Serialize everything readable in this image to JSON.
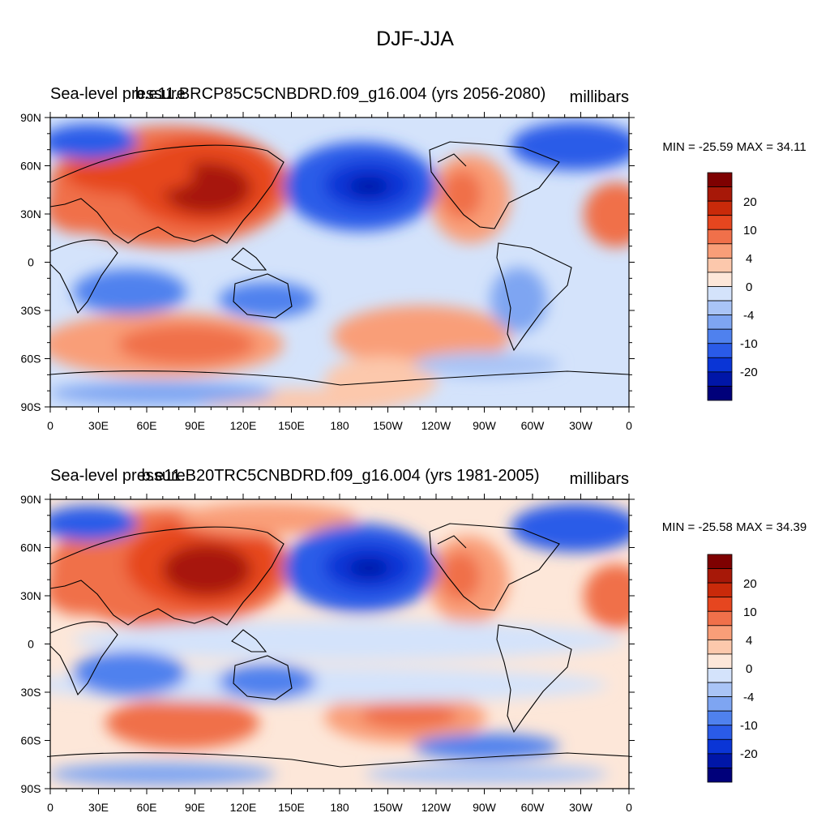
{
  "figure_title": "DJF-JJA",
  "colors": {
    "levels_colors": [
      "#00007a",
      "#0016a8",
      "#0a35d6",
      "#2a5be8",
      "#4f81ee",
      "#7ea5f2",
      "#a9c4f6",
      "#d4e3fb",
      "#fde7d9",
      "#fcc8ac",
      "#f99e78",
      "#f0704a",
      "#e6461f",
      "#c92a0a",
      "#a71808",
      "#7e0101"
    ]
  },
  "chart_data": [
    {
      "type": "heatmap",
      "title_left": "Sea-level pressure",
      "title_center": "b.e11.BRCP85C5CNBDRD.f09_g16.004 (yrs 2056-2080)",
      "title_right": "millibars",
      "stats_text": "MIN = -25.59 MAX =  34.11",
      "min": -25.59,
      "max": 34.11,
      "x_ticks": [
        "0",
        "30E",
        "60E",
        "90E",
        "120E",
        "150E",
        "180",
        "150W",
        "120W",
        "90W",
        "60W",
        "30W",
        "0"
      ],
      "y_ticks": [
        "90N",
        "60N",
        "30N",
        "0",
        "30S",
        "60S",
        "90S"
      ],
      "xlim": [
        0,
        360
      ],
      "ylim": [
        -90,
        90
      ],
      "colorbar_labels": [
        "20",
        "10",
        "4",
        "0",
        "-4",
        "-10",
        "-20"
      ],
      "levels": [
        -25,
        -20,
        -15,
        -10,
        -6,
        -4,
        -2,
        0,
        2,
        4,
        6,
        10,
        15,
        20,
        25
      ]
    },
    {
      "type": "heatmap",
      "title_left": "Sea-level pressure",
      "title_center": "b.e11.B20TRC5CNBDRD.f09_g16.004 (yrs 1981-2005)",
      "title_right": "millibars",
      "stats_text": "MIN = -25.58 MAX =  34.39",
      "min": -25.58,
      "max": 34.39,
      "x_ticks": [
        "0",
        "30E",
        "60E",
        "90E",
        "120E",
        "150E",
        "180",
        "150W",
        "120W",
        "90W",
        "60W",
        "30W",
        "0"
      ],
      "y_ticks": [
        "90N",
        "60N",
        "30N",
        "0",
        "30S",
        "60S",
        "90S"
      ],
      "xlim": [
        0,
        360
      ],
      "ylim": [
        -90,
        90
      ],
      "colorbar_labels": [
        "20",
        "10",
        "4",
        "0",
        "-4",
        "-10",
        "-20"
      ],
      "levels": [
        -25,
        -20,
        -15,
        -10,
        -6,
        -4,
        -2,
        0,
        2,
        4,
        6,
        10,
        15,
        20,
        25
      ]
    }
  ]
}
